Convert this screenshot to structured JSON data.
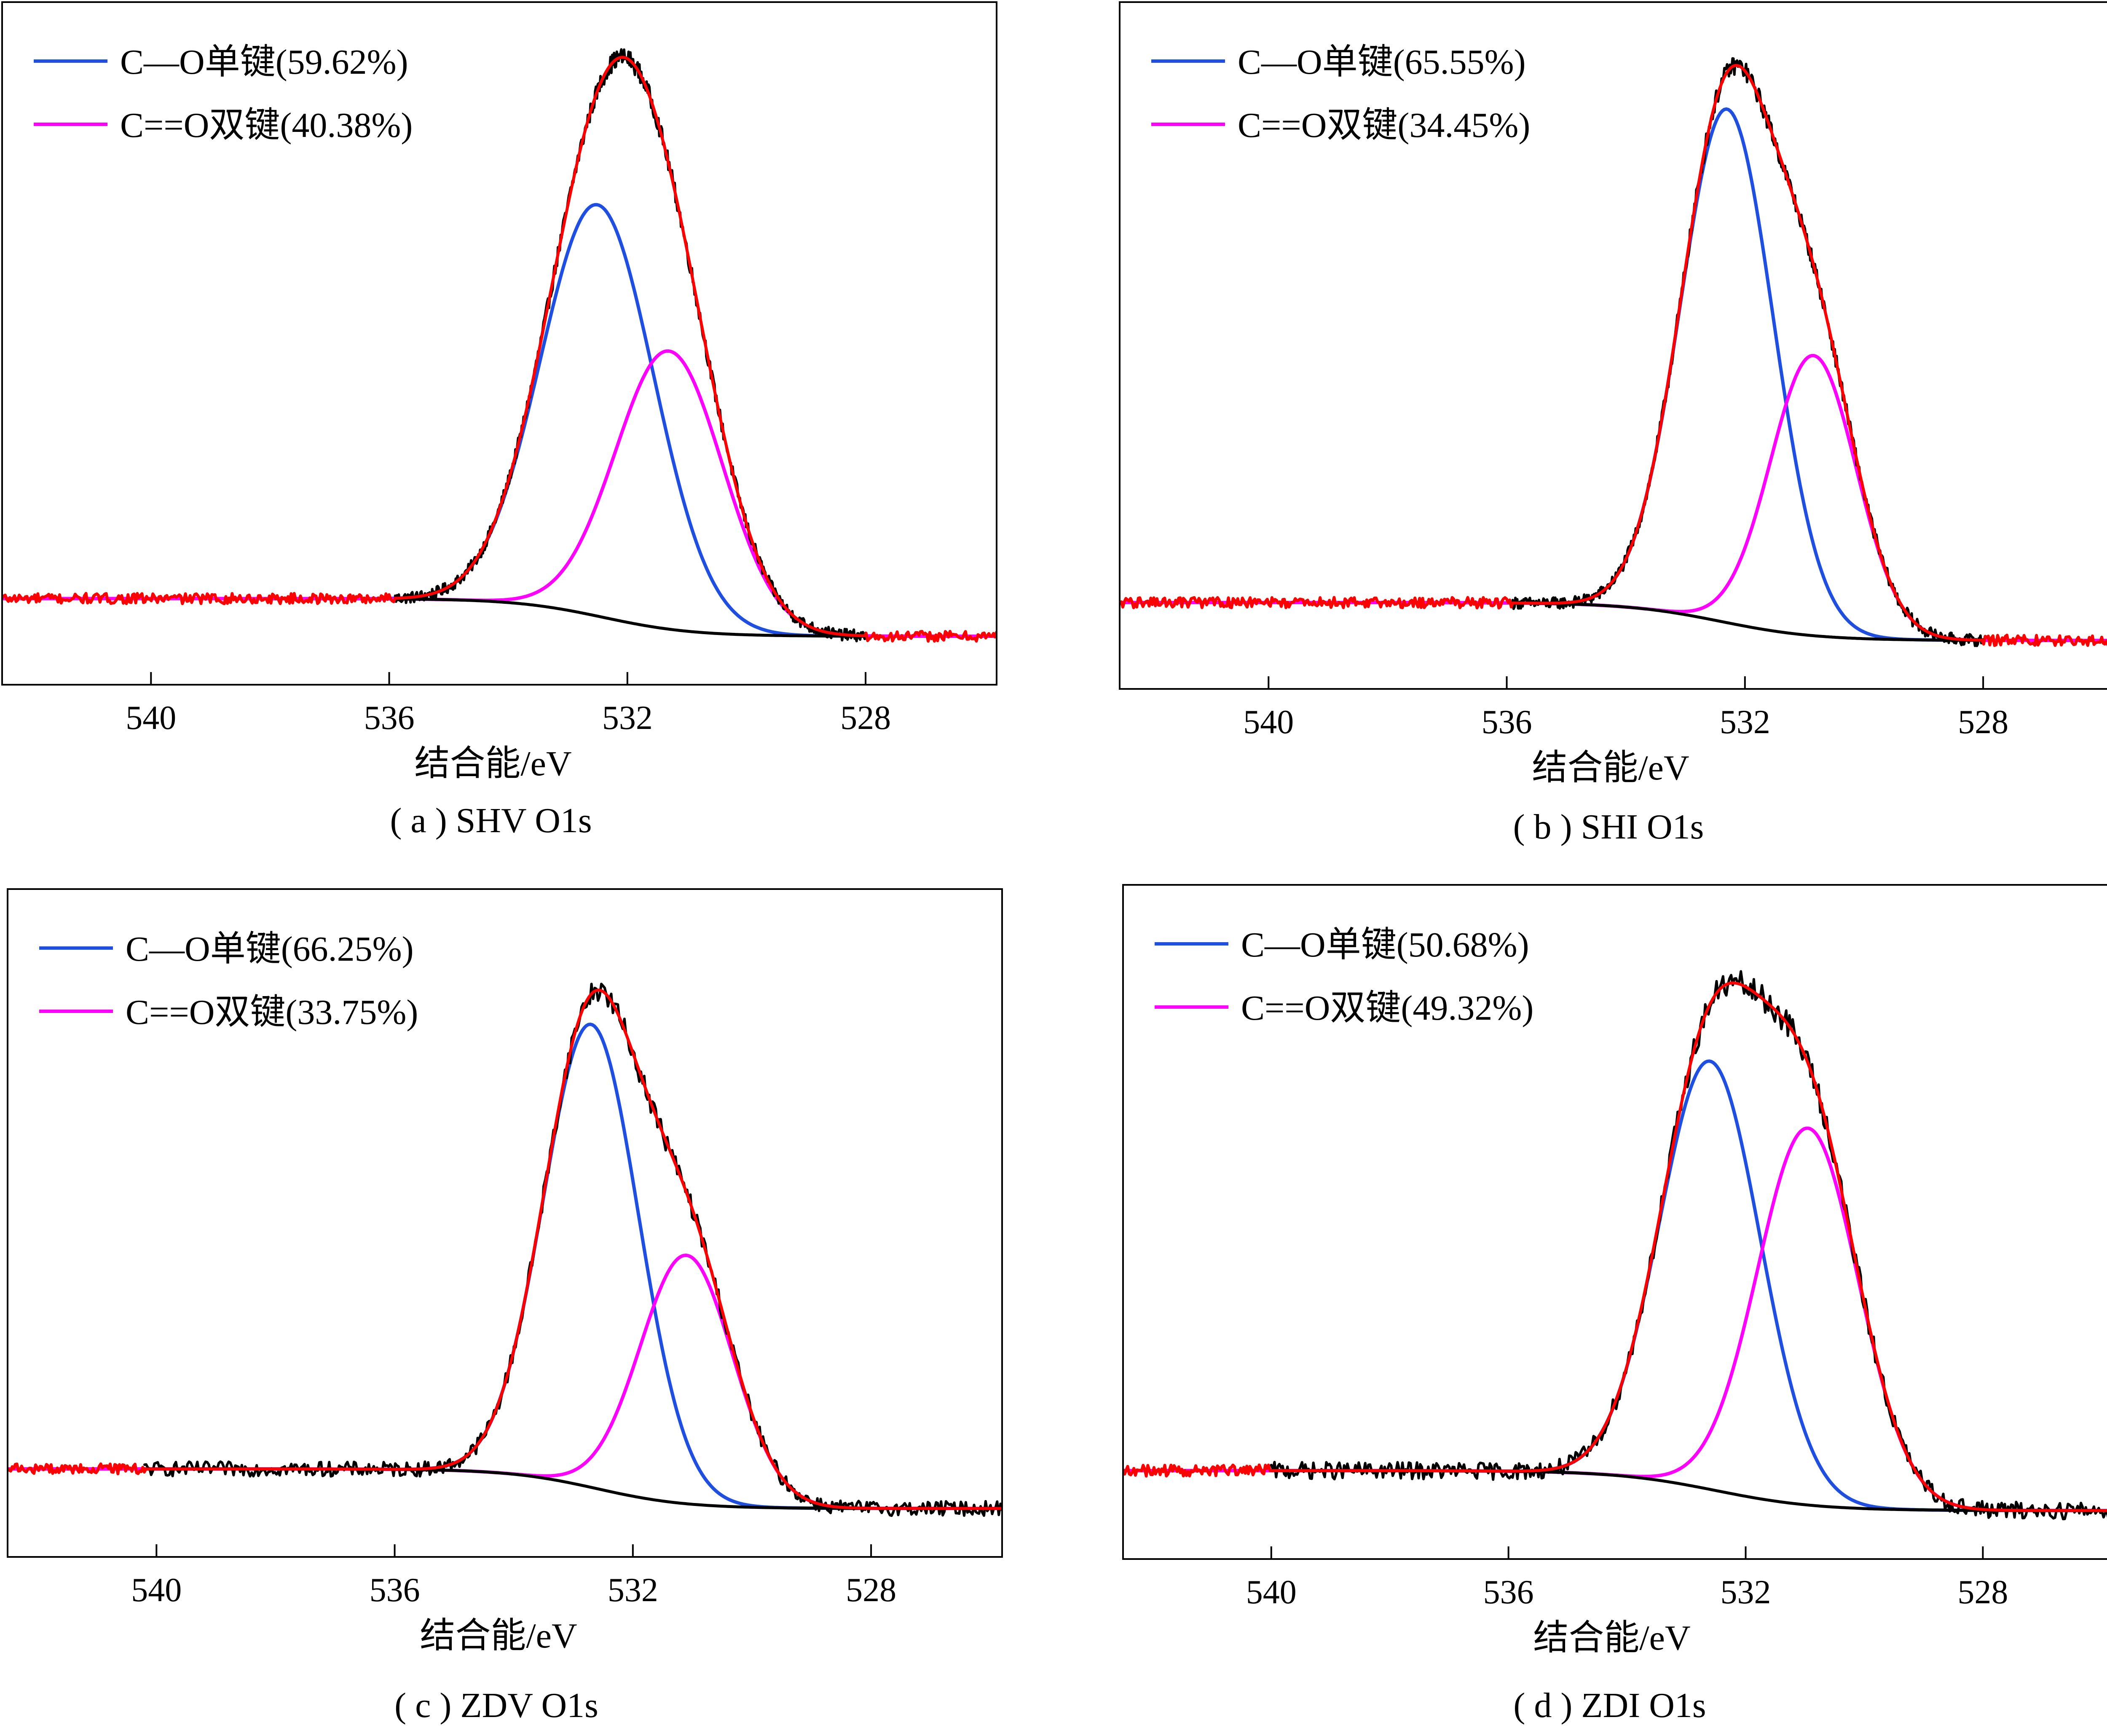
{
  "colors": {
    "background": "#ffffff",
    "raw": "#000000",
    "baseline": "#000000",
    "fit": "#ff0000",
    "co_single": "#1f4fe0",
    "co_double": "#ff00ff"
  },
  "chart_data": [
    {
      "type": "line",
      "caption": "( a ) SHV O1s",
      "xlabel": "结合能/eV",
      "ylabel": "",
      "x_reversed": true,
      "xlim": [
        542.5,
        525.8
      ],
      "xticks": [
        "540",
        "536",
        "532",
        "528"
      ],
      "y_units": "arbitrary (normalised intensity)",
      "ylim": [
        0,
        1.05
      ],
      "grid": false,
      "legend_position": "top-left",
      "background": 0.062,
      "series": [
        {
          "name": "C—O单键(59.62%)",
          "color": "#1f4fe0",
          "role": "component",
          "center": 532.5,
          "sigma": 0.95,
          "amplitude": 0.71
        },
        {
          "name": "C==O双键(40.38%)",
          "color": "#ff00ff",
          "role": "component",
          "center": 531.3,
          "sigma": 0.9,
          "amplitude": 0.48
        },
        {
          "role": "raw",
          "color": "#000000",
          "x_range": [
            535.9,
            528.0
          ],
          "noise": 0.01
        },
        {
          "role": "background",
          "color": "#000000",
          "x_range": [
            535.9,
            528.0
          ],
          "start": 0.065,
          "end": 0.0,
          "center": 532.4,
          "width": 0.75
        },
        {
          "role": "fit",
          "color": "#ff0000",
          "x_range": [
            542.5,
            525.8
          ],
          "noise_outside": 0.009
        }
      ]
    },
    {
      "type": "line",
      "caption": "( b ) SHI O1s",
      "xlabel": "结合能/eV",
      "ylabel": "",
      "x_reversed": true,
      "xlim": [
        542.5,
        525.8
      ],
      "xticks": [
        "540",
        "536",
        "532",
        "528"
      ],
      "y_units": "arbitrary (normalised intensity)",
      "ylim": [
        0,
        1.05
      ],
      "grid": false,
      "legend_position": "top-left",
      "background": 0.062,
      "series": [
        {
          "name": "C—O单键(65.55%)",
          "color": "#1f4fe0",
          "role": "component",
          "center": 532.3,
          "sigma": 0.78,
          "amplitude": 0.88
        },
        {
          "name": "C==O双键(34.45%)",
          "color": "#ff00ff",
          "role": "component",
          "center": 530.85,
          "sigma": 0.72,
          "amplitude": 0.48
        },
        {
          "role": "raw",
          "color": "#000000",
          "x_range": [
            535.9,
            528.0
          ],
          "noise": 0.01
        },
        {
          "role": "background",
          "color": "#000000",
          "x_range": [
            535.9,
            528.0
          ],
          "start": 0.065,
          "end": 0.0,
          "center": 532.4,
          "width": 0.8
        },
        {
          "role": "fit",
          "color": "#ff0000",
          "x_range": [
            542.5,
            525.8
          ],
          "noise_outside": 0.009
        }
      ]
    },
    {
      "type": "line",
      "caption": "( c ) ZDV O1s",
      "xlabel": "结合能/eV",
      "ylabel": "",
      "x_reversed": true,
      "xlim": [
        542.5,
        525.8
      ],
      "xticks": [
        "540",
        "536",
        "532",
        "528"
      ],
      "y_units": "arbitrary (normalised intensity)",
      "ylim": [
        0,
        1.05
      ],
      "grid": false,
      "legend_position": "top-left",
      "background": 0.07,
      "series": [
        {
          "name": "C—O单键(66.25%)",
          "color": "#1f4fe0",
          "role": "component",
          "center": 532.7,
          "sigma": 0.8,
          "amplitude": 0.82
        },
        {
          "name": "C==O双键(33.75%)",
          "color": "#ff00ff",
          "role": "component",
          "center": 531.1,
          "sigma": 0.78,
          "amplitude": 0.44
        },
        {
          "role": "raw",
          "color": "#000000",
          "x_range": [
            540.2,
            525.8
          ],
          "noise": 0.013
        },
        {
          "role": "background",
          "color": "#000000",
          "x_range": [
            540.2,
            525.8
          ],
          "start": 0.07,
          "end": 0.0,
          "center": 532.6,
          "width": 0.75
        },
        {
          "role": "fit",
          "color": "#ff0000",
          "x_range": [
            542.5,
            525.8
          ],
          "noise_outside": 0.009
        }
      ]
    },
    {
      "type": "line",
      "caption": "( d ) ZDI O1s",
      "xlabel": "结合能/eV",
      "ylabel": "",
      "x_reversed": true,
      "xlim": [
        542.5,
        525.8
      ],
      "xticks": [
        "540",
        "536",
        "532",
        "528"
      ],
      "y_units": "arbitrary (normalised intensity)",
      "ylim": [
        0,
        1.05
      ],
      "grid": false,
      "legend_position": "top-left",
      "background": 0.07,
      "series": [
        {
          "name": "C—O单键(50.68%)",
          "color": "#1f4fe0",
          "role": "component",
          "center": 532.6,
          "sigma": 0.85,
          "amplitude": 0.75
        },
        {
          "name": "C==O双键(49.32%)",
          "color": "#ff00ff",
          "role": "component",
          "center": 530.95,
          "sigma": 0.85,
          "amplitude": 0.66
        },
        {
          "role": "raw",
          "color": "#000000",
          "x_range": [
            540.0,
            525.8
          ],
          "noise": 0.015
        },
        {
          "role": "background",
          "color": "#000000",
          "x_range": [
            540.0,
            525.8
          ],
          "start": 0.07,
          "end": 0.0,
          "center": 532.5,
          "width": 0.85
        },
        {
          "role": "fit",
          "color": "#ff0000",
          "x_range": [
            542.5,
            525.8
          ],
          "noise_outside": 0.01
        }
      ]
    }
  ]
}
